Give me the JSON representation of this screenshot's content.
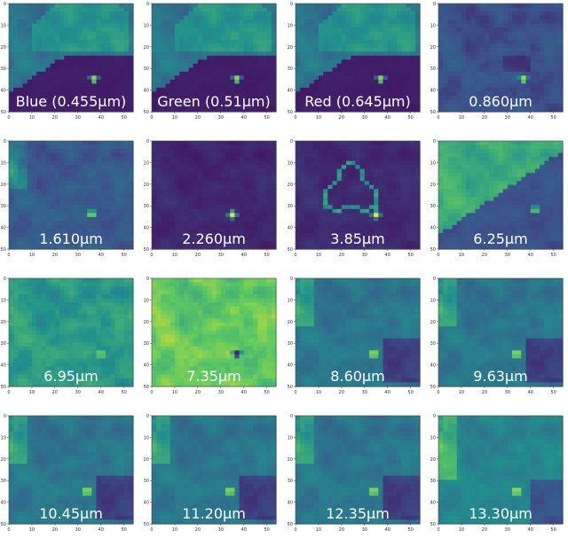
{
  "chart_data": {
    "type": "heatmap",
    "title": "",
    "xlabel": "",
    "ylabel": "",
    "x_ticks": [
      0,
      10,
      20,
      30,
      40,
      50
    ],
    "y_ticks": [
      0,
      10,
      20,
      30,
      40,
      50
    ],
    "xlim": [
      0,
      54
    ],
    "ylim": [
      0,
      50
    ],
    "colormap": [
      "#440154",
      "#3b528b",
      "#21908d",
      "#5ec962",
      "#fde725"
    ],
    "panels": [
      {
        "label": "Blue (0.455µm)",
        "pattern": "visible",
        "hotspot": {
          "x": 37,
          "y": 35,
          "level": 0.95
        }
      },
      {
        "label": "Green (0.51µm)",
        "pattern": "visible",
        "hotspot": {
          "x": 37,
          "y": 35,
          "level": 0.95
        }
      },
      {
        "label": "Red (0.645µm)",
        "pattern": "visible",
        "hotspot": {
          "x": 37,
          "y": 35,
          "level": 0.95
        }
      },
      {
        "label": "0.860µm",
        "pattern": "nir",
        "hotspot": {
          "x": 37,
          "y": 35,
          "level": 0.95
        }
      },
      {
        "label": "1.610µm",
        "pattern": "swir1",
        "hotspot": {
          "x": 36,
          "y": 34,
          "level": 0.9
        }
      },
      {
        "label": "2.260µm",
        "pattern": "swir2",
        "hotspot": {
          "x": 35,
          "y": 34,
          "level": 1.0
        }
      },
      {
        "label": "3.85µm",
        "pattern": "mwir",
        "hotspot": {
          "x": 35,
          "y": 34,
          "level": 1.0
        }
      },
      {
        "label": "6.25µm",
        "pattern": "wv1",
        "hotspot": {
          "x": 42,
          "y": 32,
          "level": 0.85
        }
      },
      {
        "label": "6.95µm",
        "pattern": "wv2",
        "hotspot": {
          "x": 40,
          "y": 35,
          "level": 0.85
        }
      },
      {
        "label": "7.35µm",
        "pattern": "wv3",
        "hotspot": {
          "x": 37,
          "y": 35,
          "level": 0.0
        }
      },
      {
        "label": "8.60µm",
        "pattern": "tir",
        "hotspot": {
          "x": 34,
          "y": 35,
          "level": 1.0
        }
      },
      {
        "label": "9.63µm",
        "pattern": "tir",
        "hotspot": {
          "x": 34,
          "y": 35,
          "level": 1.0
        }
      },
      {
        "label": "10.45µm",
        "pattern": "tir",
        "hotspot": {
          "x": 34,
          "y": 35,
          "level": 1.0
        }
      },
      {
        "label": "11.20µm",
        "pattern": "tir",
        "hotspot": {
          "x": 34,
          "y": 35,
          "level": 1.0
        }
      },
      {
        "label": "12.35µm",
        "pattern": "tir",
        "hotspot": {
          "x": 34,
          "y": 35,
          "level": 1.0
        }
      },
      {
        "label": "13.30µm",
        "pattern": "tir13",
        "hotspot": {
          "x": 34,
          "y": 35,
          "level": 1.0
        }
      }
    ]
  }
}
